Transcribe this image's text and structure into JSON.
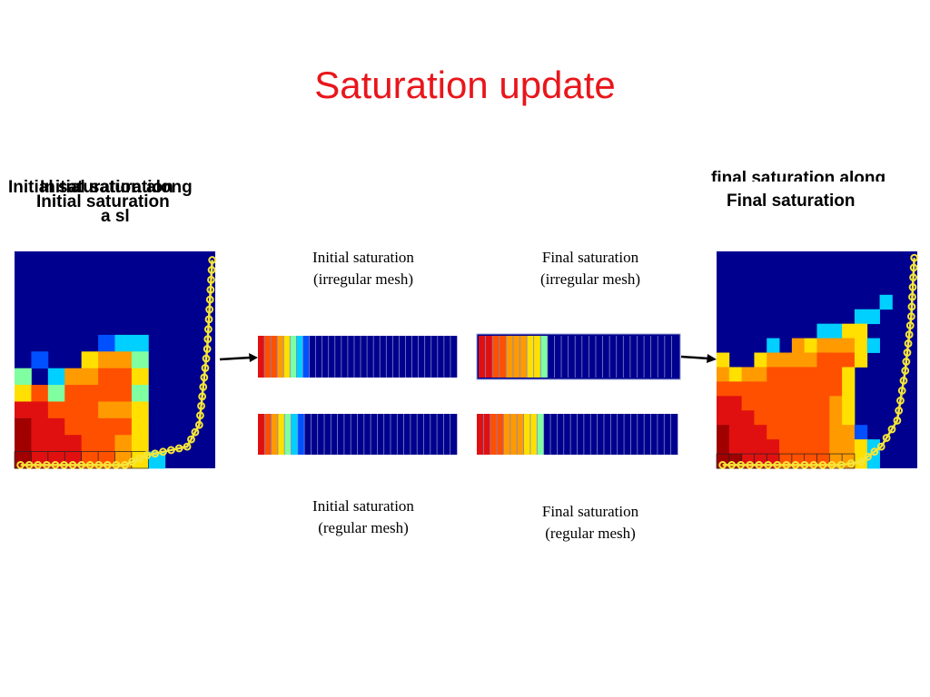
{
  "slide": {
    "title": "Saturation update",
    "left_label_1": "Initial saturation along",
    "left_label_2": "Initial saturation",
    "left_label_3": "a sl",
    "left_label_4": "Initial saturation",
    "right_label_1": "final saturation along",
    "right_label_2": "Final saturation",
    "cap_init_irregular_1": "Initial saturation",
    "cap_init_irregular_2": "(irregular mesh)",
    "cap_final_irregular_1": "Final saturation",
    "cap_final_irregular_2": "(irregular mesh)",
    "cap_init_regular_1": "Initial saturation",
    "cap_init_regular_2": "(regular mesh)",
    "cap_final_regular_1": "Final saturation",
    "cap_final_regular_2": "(regular mesh)"
  },
  "colors": {
    "title": "#e8161b",
    "background_blue": "#00008f",
    "streamline": "#f5e63a"
  },
  "colormap": [
    "#00008f",
    "#0050ff",
    "#00d0ff",
    "#7fffa0",
    "#ffe000",
    "#ff9a00",
    "#ff5000",
    "#e01010",
    "#a00000"
  ],
  "left_grid": [
    "000000000000",
    "000000000000",
    "000000000000",
    "000000000000",
    "000000000000",
    "000001220000",
    "010045530000",
    "302556640000",
    "463666630000",
    "776665540000",
    "877666640000",
    "877766540000",
    "877766542000"
  ],
  "right_grid": [
    "0000000000000000",
    "0000000000000000",
    "0000000000000000",
    "0000000000000200",
    "0000000000022000",
    "0000000022440000",
    "0000205455542000",
    "4004555566640000",
    "5455666666400000",
    "6666666666400000",
    "7766666665400000",
    "7776666665400000",
    "8777666665510000",
    "8777766665542000",
    "8877766665542000"
  ],
  "bars": {
    "init_irregular": [
      7,
      6,
      6,
      5,
      4,
      3,
      2,
      1,
      0,
      0,
      0,
      0,
      0,
      0,
      0,
      0,
      0,
      0,
      0,
      0,
      0,
      0,
      0,
      0,
      0,
      0,
      0,
      0,
      0,
      0,
      0
    ],
    "final_irregular": [
      7,
      7,
      6,
      6,
      5,
      5,
      5,
      4,
      4,
      3,
      0,
      0,
      0,
      0,
      0,
      0,
      0,
      0,
      0,
      0,
      0,
      0,
      0,
      0,
      0,
      0,
      0,
      0,
      0
    ],
    "init_regular": [
      7,
      6,
      5,
      4,
      3,
      2,
      1,
      0,
      0,
      0,
      0,
      0,
      0,
      0,
      0,
      0,
      0,
      0,
      0,
      0,
      0,
      0,
      0,
      0,
      0,
      0,
      0,
      0,
      0,
      0
    ],
    "final_regular": [
      7,
      7,
      6,
      6,
      5,
      5,
      5,
      4,
      4,
      3,
      0,
      0,
      0,
      0,
      0,
      0,
      0,
      0,
      0,
      0,
      0,
      0,
      0,
      0,
      0,
      0,
      0,
      0,
      0,
      0
    ]
  }
}
